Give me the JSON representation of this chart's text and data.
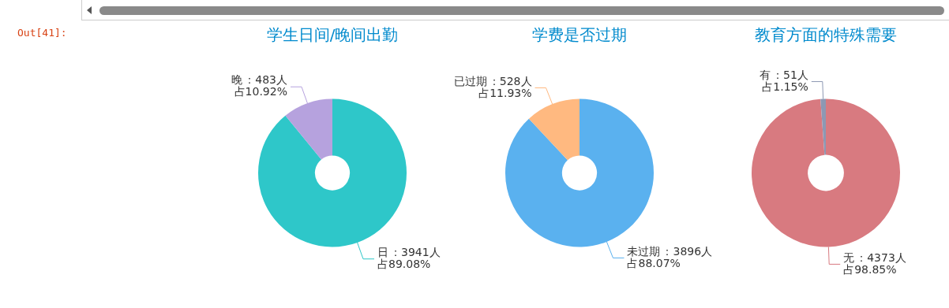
{
  "chart_data": [
    {
      "type": "donut",
      "title": "学生日间/晚间出勤",
      "categories": [
        "日",
        "晚"
      ],
      "values": [
        3941,
        483
      ],
      "colors": [
        "#2ec7c9",
        "#b6a2de"
      ],
      "value_labels": [
        "：3941人占89.08%",
        "：483人占10.92%"
      ],
      "legend": false,
      "annotations": [
        "Out[41]:"
      ]
    },
    {
      "type": "donut",
      "title": "学费是否过期",
      "categories": [
        "未过期",
        "已过期"
      ],
      "values": [
        3896,
        528
      ],
      "colors": [
        "#5ab1ef",
        "#ffb980"
      ],
      "value_labels": [
        "：3896人占88.07%",
        "：528人占11.93%"
      ],
      "legend": false
    },
    {
      "type": "donut",
      "title": "教育方面的特殊需要",
      "categories": [
        "无",
        "有"
      ],
      "values": [
        4373,
        51
      ],
      "colors": [
        "#d87a80",
        "#8d98b3"
      ],
      "value_labels": [
        "：4373人占98.85%",
        "：51人占1.15%"
      ],
      "legend": false
    }
  ]
}
